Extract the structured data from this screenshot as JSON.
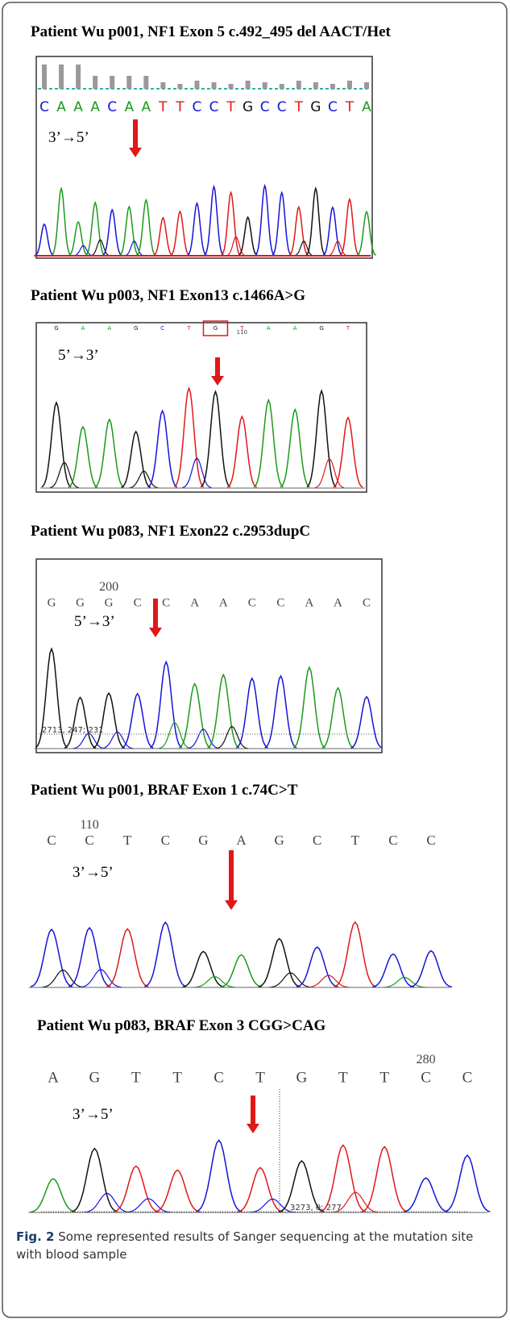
{
  "panels": [
    {
      "title": "Patient Wu p001, NF1 Exon 5 c.492_495 del AACT/Het",
      "bases": [
        "C",
        "A",
        "A",
        "A",
        "C",
        "A",
        "A",
        "T",
        "T",
        "C",
        "C",
        "T",
        "G",
        "C",
        "C",
        "T",
        "G",
        "C",
        "T",
        "A"
      ],
      "direction": "3’→5’"
    },
    {
      "title": "Patient Wu p003, NF1 Exon13 c.1466A>G",
      "bases": [
        "G",
        "A",
        "A",
        "G",
        "C",
        "T",
        "G",
        "T",
        "A",
        "A",
        "G",
        "T"
      ],
      "position": "110",
      "direction": "5’→3’"
    },
    {
      "title": "Patient Wu p083, NF1 Exon22 c.2953dupC",
      "bases": [
        "G",
        "G",
        "G",
        "C",
        "C",
        "A",
        "A",
        "C",
        "C",
        "A",
        "A",
        "C"
      ],
      "position": "200",
      "direction": "5’→3’",
      "baseline_label": "2713, 247; 231"
    },
    {
      "title": "Patient Wu p001, BRAF Exon 1 c.74C>T",
      "bases": [
        "C",
        "C",
        "T",
        "C",
        "G",
        "A",
        "G",
        "C",
        "T",
        "C",
        "C"
      ],
      "position": "110",
      "direction": "3’→5’"
    },
    {
      "title": "Patient Wu p083, BRAF Exon 3 CGG>CAG",
      "bases": [
        "A",
        "G",
        "T",
        "T",
        "C",
        "T",
        "G",
        "T",
        "T",
        "C",
        "C"
      ],
      "position": "280",
      "direction": "3’→5’",
      "baseline_label": "3273, 0; 277"
    }
  ],
  "caption": {
    "label": "Fig. 2",
    "text": "Some represented results of Sanger sequencing at the mutation site with blood sample"
  }
}
